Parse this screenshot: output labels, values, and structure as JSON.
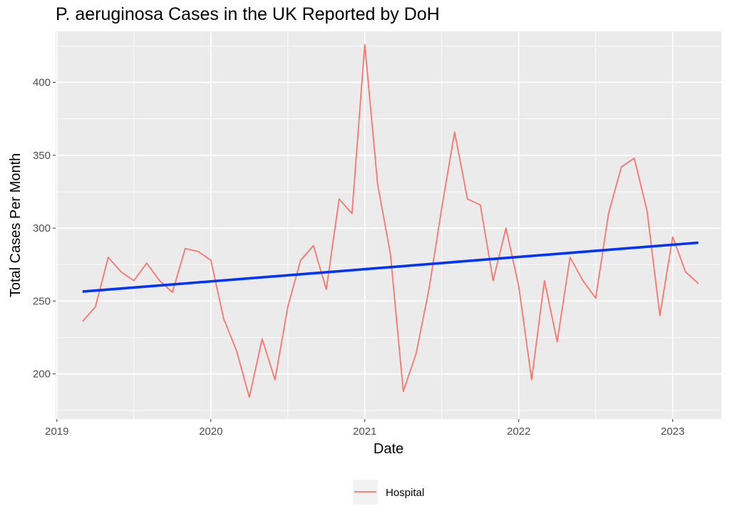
{
  "chart_data": {
    "type": "line",
    "title": "P. aeruginosa Cases in the UK Reported by DoH",
    "xlabel": "Date",
    "ylabel": "Total Cases Per Month",
    "x_ticks": [
      "2019",
      "2020",
      "2021",
      "2022",
      "2023"
    ],
    "y_ticks": [
      200,
      250,
      300,
      350,
      400
    ],
    "ylim": [
      169,
      435
    ],
    "xlim": [
      "2019-01",
      "2023-05"
    ],
    "grid": true,
    "legend": "bottom",
    "series": [
      {
        "name": "Hospital",
        "color": "#F8766D",
        "x": [
          "2019-03",
          "2019-04",
          "2019-05",
          "2019-06",
          "2019-07",
          "2019-08",
          "2019-09",
          "2019-10",
          "2019-11",
          "2019-12",
          "2020-01",
          "2020-02",
          "2020-03",
          "2020-04",
          "2020-05",
          "2020-06",
          "2020-07",
          "2020-08",
          "2020-09",
          "2020-10",
          "2020-11",
          "2020-12",
          "2021-01",
          "2021-02",
          "2021-03",
          "2021-04",
          "2021-05",
          "2021-06",
          "2021-07",
          "2021-08",
          "2021-09",
          "2021-10",
          "2021-11",
          "2021-12",
          "2022-01",
          "2022-02",
          "2022-03",
          "2022-04",
          "2022-05",
          "2022-06",
          "2022-07",
          "2022-08",
          "2022-09",
          "2022-10",
          "2022-11",
          "2022-12",
          "2023-01",
          "2023-02",
          "2023-03"
        ],
        "values": [
          236,
          246,
          280,
          270,
          264,
          276,
          264,
          256,
          286,
          284,
          278,
          238,
          216,
          184,
          224,
          196,
          246,
          278,
          288,
          258,
          320,
          310,
          426,
          330,
          282,
          188,
          214,
          258,
          314,
          366,
          320,
          316,
          264,
          300,
          260,
          196,
          264,
          222,
          280,
          264,
          252,
          310,
          342,
          348,
          312,
          240,
          294,
          270,
          262
        ]
      },
      {
        "name": "",
        "color": "#0033FF",
        "type": "trend",
        "x": [
          "2019-03",
          "2023-03"
        ],
        "values": [
          256.5,
          290
        ]
      }
    ]
  }
}
